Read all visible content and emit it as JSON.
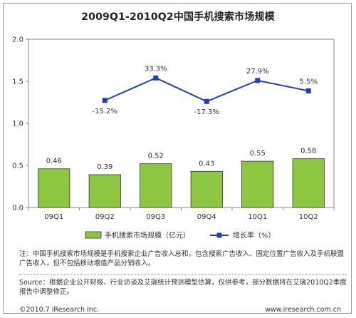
{
  "title": "2009Q1-2010Q2中国手机搜索市场规模",
  "chart_data": {
    "type": "bar",
    "categories": [
      "09Q1",
      "09Q2",
      "09Q3",
      "09Q4",
      "10Q1",
      "10Q2"
    ],
    "series": [
      {
        "name": "手机搜索市场规模（亿元）",
        "type": "bar",
        "values": [
          0.46,
          0.39,
          0.52,
          0.43,
          0.55,
          0.58
        ],
        "labels": [
          "0.46",
          "0.39",
          "0.52",
          "0.43",
          "0.55",
          "0.58"
        ],
        "color": "#8DC63F"
      },
      {
        "name": "增长率（%）",
        "type": "line",
        "values": [
          null,
          -15.2,
          33.3,
          -17.3,
          27.9,
          5.5
        ],
        "labels": [
          "",
          "-15.2%",
          "33.3%",
          "-17.3%",
          "27.9%",
          "5.5%"
        ],
        "color": "#1F3FBF"
      }
    ],
    "ylim": [
      0,
      2.0
    ],
    "yticks": [
      "0.0",
      "0.5",
      "1.0",
      "1.5",
      "2.0"
    ],
    "legend_position": "bottom",
    "grid": false
  },
  "notes": {
    "note": "注：中国手机搜索市场规模是手机搜索企业广告收入总和，包含搜索广告收入、固定位置广告收入及手机联盟广告收入，但不包括移动增值产品分销收入。",
    "source": "Source：根据企业公开财报、行业访谈及艾瑞统计预测模型估算，仅供参考，部分数据将在艾瑞2010Q2季度报告中调整修正。"
  },
  "footer": {
    "copyright": "©2010.7 iResearch Inc.",
    "website": "www.iresearch.com.cn"
  }
}
